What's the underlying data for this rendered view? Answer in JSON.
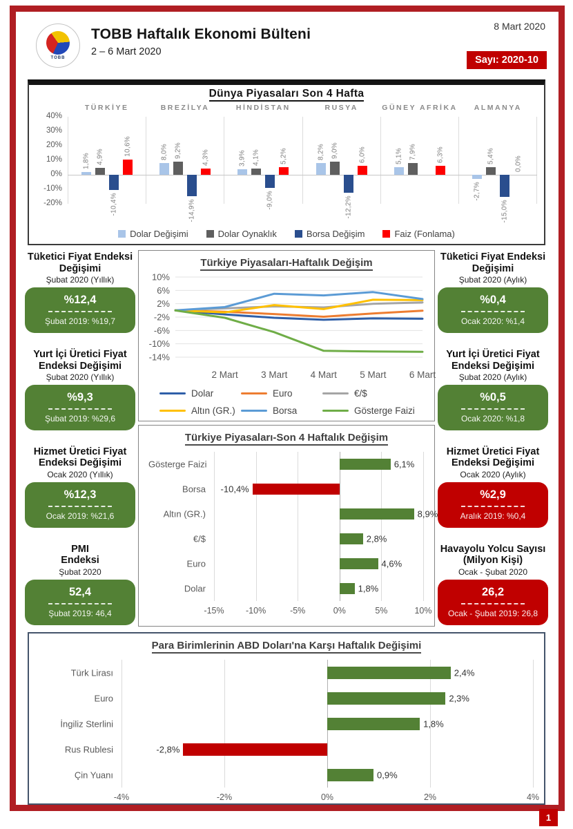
{
  "header": {
    "title": "TOBB Haftalık Ekonomi Bülteni",
    "subtitle": "2 – 6 Mart 2020",
    "date_right": "8 Mart 2020",
    "issue_badge": "Sayı: 2020-10",
    "logo_text": "TOBB"
  },
  "colors": {
    "frame_red": "#b01e23",
    "badge_red": "#c00000",
    "stat_green": "#538135",
    "stat_red": "#c00000"
  },
  "left_stats": [
    {
      "title": "Tüketici Fiyat Endeksi Değişimi",
      "subtitle": "Şubat 2020 (Yıllık)",
      "value": "%12,4",
      "prev": "Şubat 2019: %19,7",
      "color": "green"
    },
    {
      "title": "Yurt İçi Üretici Fiyat Endeksi Değişimi",
      "subtitle": "Şubat 2020 (Yıllık)",
      "value": "%9,3",
      "prev": "Şubat 2019: %29,6",
      "color": "green"
    },
    {
      "title": "Hizmet Üretici Fiyat Endeksi Değişimi",
      "subtitle": "Ocak 2020 (Yıllık)",
      "value": "%12,3",
      "prev": "Ocak 2019: %21,6",
      "color": "green"
    },
    {
      "title": "PMI\nEndeksi",
      "subtitle": "Şubat 2020",
      "value": "52,4",
      "prev": "Şubat 2019: 46,4",
      "color": "green"
    }
  ],
  "right_stats": [
    {
      "title": "Tüketici Fiyat Endeksi Değişimi",
      "subtitle": "Şubat 2020 (Aylık)",
      "value": "%0,4",
      "prev": "Ocak 2020: %1,4",
      "color": "green"
    },
    {
      "title": "Yurt İçi Üretici Fiyat Endeksi Değişimi",
      "subtitle": "Şubat 2020 (Aylık)",
      "value": "%0,5",
      "prev": "Ocak 2020: %1,8",
      "color": "green"
    },
    {
      "title": "Hizmet Üretici Fiyat Endeksi Değişimi",
      "subtitle": "Ocak 2020 (Aylık)",
      "value": "%2,9",
      "prev": "Aralık 2019: %0,4",
      "color": "red"
    },
    {
      "title": "Havayolu Yolcu Sayısı (Milyon Kişi)",
      "subtitle": "Ocak - Şubat 2020",
      "value": "26,2",
      "prev": "Ocak - Şubat 2019: 26,8",
      "color": "red"
    }
  ],
  "chart_data": [
    {
      "id": "world_markets",
      "type": "bar",
      "title": "Dünya Piyasaları Son 4 Hafta",
      "categories": [
        "TÜRKİYE",
        "BREZİLYA",
        "HİNDİSTAN",
        "RUSYA",
        "GÜNEY AFRİKA",
        "ALMANYA"
      ],
      "series": [
        {
          "name": "Dolar Değişimi",
          "color": "#a9c5e8",
          "values": [
            1.8,
            8.0,
            3.9,
            8.2,
            5.1,
            -2.7
          ],
          "labels": [
            "1,8%",
            "8,0%",
            "3,9%",
            "8,2%",
            "5,1%",
            "-2,7%"
          ]
        },
        {
          "name": "Dolar Oynaklık",
          "color": "#5f5f5f",
          "values": [
            4.9,
            9.2,
            4.1,
            9.0,
            7.9,
            5.4
          ],
          "labels": [
            "4,9%",
            "9,2%",
            "4,1%",
            "9,0%",
            "7,9%",
            "5,4%"
          ]
        },
        {
          "name": "Borsa Değişim",
          "color": "#2a4e8e",
          "values": [
            -10.4,
            -14.9,
            -9.0,
            -12.2,
            null,
            -15.0
          ],
          "labels": [
            "-10,4%",
            "-14,9%",
            "-9,0%",
            "-12,2%",
            "",
            "-15,0%"
          ]
        },
        {
          "name": "Faiz (Fonlama)",
          "color": "#fe0000",
          "values": [
            10.6,
            4.3,
            5.2,
            6.0,
            6.3,
            0.0
          ],
          "labels": [
            "10,6%",
            "4,3%",
            "5,2%",
            "6,0%",
            "6,3%",
            "0,0%"
          ]
        }
      ],
      "ylim": [
        -20,
        40
      ],
      "yticks": [
        40,
        30,
        20,
        10,
        0,
        -10,
        -20
      ],
      "legend_position": "bottom",
      "grid": false
    },
    {
      "id": "turkey_weekly",
      "type": "line",
      "title": "Türkiye Piyasaları-Haftalık Değişim",
      "x_labels": [
        "",
        "2 Mart",
        "3 Mart",
        "4 Mart",
        "5 Mart",
        "6 Mart"
      ],
      "ylim": [
        -14,
        10
      ],
      "yticks": [
        10,
        6,
        2,
        -2,
        -6,
        -10,
        -14
      ],
      "grid": true,
      "legend_position": "bottom",
      "series": [
        {
          "name": "Dolar",
          "color": "#2f5fa8",
          "values": [
            0,
            -1.2,
            -2.2,
            -2.8,
            -2.4,
            -2.5
          ]
        },
        {
          "name": "Euro",
          "color": "#ed7d31",
          "values": [
            0,
            -0.4,
            -1.1,
            -1.9,
            -0.9,
            -0.1
          ]
        },
        {
          "name": "€/$",
          "color": "#a5a5a5",
          "values": [
            0,
            0.6,
            1.2,
            0.9,
            2.0,
            2.4
          ]
        },
        {
          "name": "Altın (GR.)",
          "color": "#ffc000",
          "values": [
            0,
            -0.6,
            1.6,
            0.4,
            3.2,
            3.1
          ]
        },
        {
          "name": "Borsa",
          "color": "#5b9bd5",
          "values": [
            0,
            1.0,
            5.0,
            4.5,
            5.5,
            3.4
          ]
        },
        {
          "name": "Gösterge Faizi",
          "color": "#6fad47",
          "values": [
            0,
            -2.2,
            -6.5,
            -12.1,
            -12.3,
            -12.4
          ]
        }
      ]
    },
    {
      "id": "turkey_4week",
      "type": "bar",
      "orientation": "horizontal",
      "title": "Türkiye Piyasaları-Son 4 Haftalık Değişim",
      "categories": [
        "Gösterge Faizi",
        "Borsa",
        "Altın (GR.)",
        "€/$",
        "Euro",
        "Dolar"
      ],
      "values": [
        6.1,
        -10.4,
        8.9,
        2.8,
        4.6,
        1.8
      ],
      "labels": [
        "6,1%",
        "-10,4%",
        "8,9%",
        "2,8%",
        "4,6%",
        "1,8%"
      ],
      "xlim": [
        -15,
        10
      ],
      "xticks": [
        "-15%",
        "-10%",
        "-5%",
        "0%",
        "5%",
        "10%"
      ],
      "positive_color": "#538135",
      "negative_color": "#c00000"
    },
    {
      "id": "currencies_vs_usd",
      "type": "bar",
      "orientation": "horizontal",
      "title": "Para Birimlerinin ABD Doları'na Karşı Haftalık Değişimi",
      "categories": [
        "Türk Lirası",
        "Euro",
        "İngiliz Sterlini",
        "Rus Rublesi",
        "Çin Yuanı"
      ],
      "values": [
        2.4,
        2.3,
        1.8,
        -2.8,
        0.9
      ],
      "labels": [
        "2,4%",
        "2,3%",
        "1,8%",
        "-2,8%",
        "0,9%"
      ],
      "xlim": [
        -4,
        4
      ],
      "xticks": [
        "-4%",
        "-2%",
        "0%",
        "2%",
        "4%"
      ],
      "positive_color": "#538135",
      "negative_color": "#c00000"
    }
  ],
  "footer": {
    "page_number": "1"
  }
}
